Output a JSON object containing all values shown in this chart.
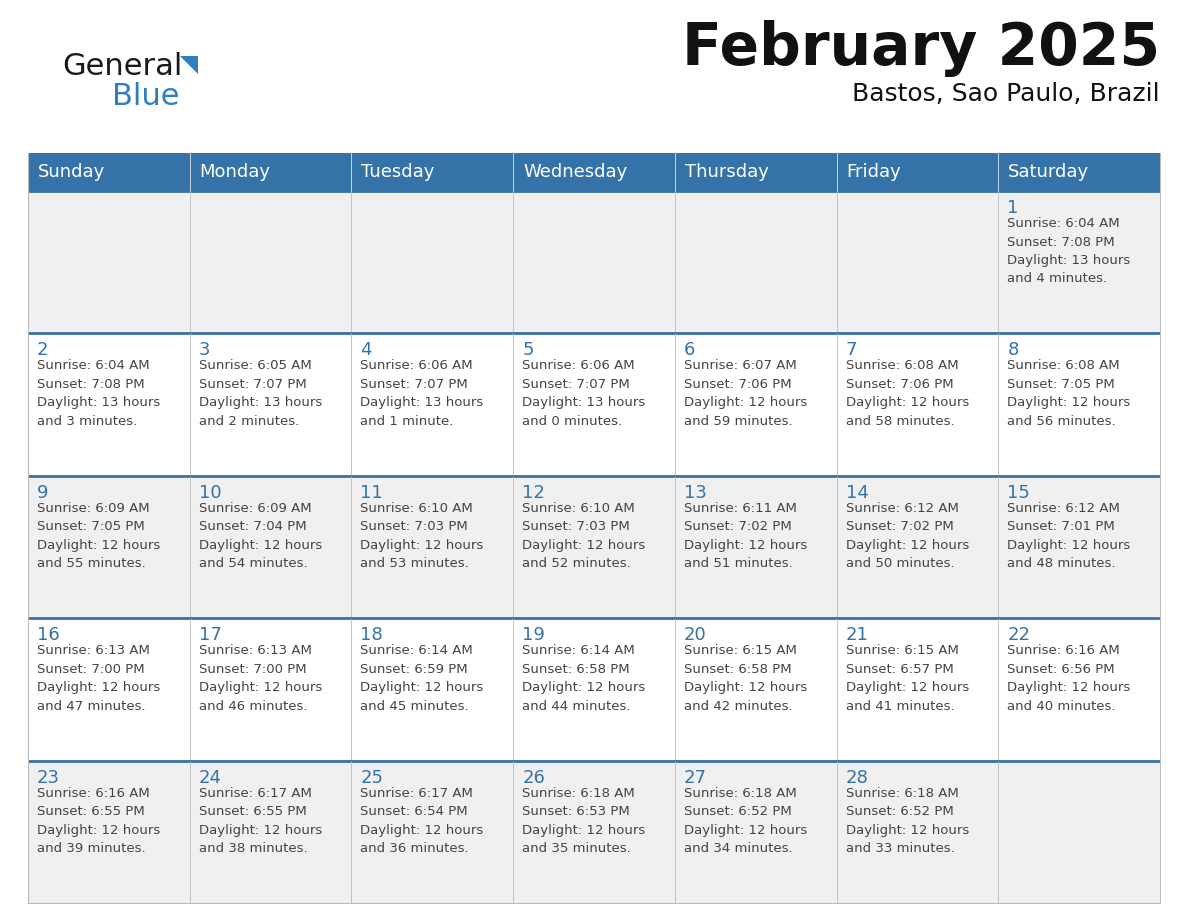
{
  "title": "February 2025",
  "subtitle": "Bastos, Sao Paulo, Brazil",
  "header_bg": "#3572A8",
  "header_text": "#FFFFFF",
  "cell_bg_odd": "#F0F0F0",
  "cell_bg_even": "#FFFFFF",
  "day_text_color": "#3572A8",
  "content_text_color": "#444444",
  "line_color": "#3572A8",
  "grid_line_color": "#BBBBBB",
  "days_of_week": [
    "Sunday",
    "Monday",
    "Tuesday",
    "Wednesday",
    "Thursday",
    "Friday",
    "Saturday"
  ],
  "weeks": [
    [
      {
        "day": null,
        "text": ""
      },
      {
        "day": null,
        "text": ""
      },
      {
        "day": null,
        "text": ""
      },
      {
        "day": null,
        "text": ""
      },
      {
        "day": null,
        "text": ""
      },
      {
        "day": null,
        "text": ""
      },
      {
        "day": 1,
        "text": "Sunrise: 6:04 AM\nSunset: 7:08 PM\nDaylight: 13 hours\nand 4 minutes."
      }
    ],
    [
      {
        "day": 2,
        "text": "Sunrise: 6:04 AM\nSunset: 7:08 PM\nDaylight: 13 hours\nand 3 minutes."
      },
      {
        "day": 3,
        "text": "Sunrise: 6:05 AM\nSunset: 7:07 PM\nDaylight: 13 hours\nand 2 minutes."
      },
      {
        "day": 4,
        "text": "Sunrise: 6:06 AM\nSunset: 7:07 PM\nDaylight: 13 hours\nand 1 minute."
      },
      {
        "day": 5,
        "text": "Sunrise: 6:06 AM\nSunset: 7:07 PM\nDaylight: 13 hours\nand 0 minutes."
      },
      {
        "day": 6,
        "text": "Sunrise: 6:07 AM\nSunset: 7:06 PM\nDaylight: 12 hours\nand 59 minutes."
      },
      {
        "day": 7,
        "text": "Sunrise: 6:08 AM\nSunset: 7:06 PM\nDaylight: 12 hours\nand 58 minutes."
      },
      {
        "day": 8,
        "text": "Sunrise: 6:08 AM\nSunset: 7:05 PM\nDaylight: 12 hours\nand 56 minutes."
      }
    ],
    [
      {
        "day": 9,
        "text": "Sunrise: 6:09 AM\nSunset: 7:05 PM\nDaylight: 12 hours\nand 55 minutes."
      },
      {
        "day": 10,
        "text": "Sunrise: 6:09 AM\nSunset: 7:04 PM\nDaylight: 12 hours\nand 54 minutes."
      },
      {
        "day": 11,
        "text": "Sunrise: 6:10 AM\nSunset: 7:03 PM\nDaylight: 12 hours\nand 53 minutes."
      },
      {
        "day": 12,
        "text": "Sunrise: 6:10 AM\nSunset: 7:03 PM\nDaylight: 12 hours\nand 52 minutes."
      },
      {
        "day": 13,
        "text": "Sunrise: 6:11 AM\nSunset: 7:02 PM\nDaylight: 12 hours\nand 51 minutes."
      },
      {
        "day": 14,
        "text": "Sunrise: 6:12 AM\nSunset: 7:02 PM\nDaylight: 12 hours\nand 50 minutes."
      },
      {
        "day": 15,
        "text": "Sunrise: 6:12 AM\nSunset: 7:01 PM\nDaylight: 12 hours\nand 48 minutes."
      }
    ],
    [
      {
        "day": 16,
        "text": "Sunrise: 6:13 AM\nSunset: 7:00 PM\nDaylight: 12 hours\nand 47 minutes."
      },
      {
        "day": 17,
        "text": "Sunrise: 6:13 AM\nSunset: 7:00 PM\nDaylight: 12 hours\nand 46 minutes."
      },
      {
        "day": 18,
        "text": "Sunrise: 6:14 AM\nSunset: 6:59 PM\nDaylight: 12 hours\nand 45 minutes."
      },
      {
        "day": 19,
        "text": "Sunrise: 6:14 AM\nSunset: 6:58 PM\nDaylight: 12 hours\nand 44 minutes."
      },
      {
        "day": 20,
        "text": "Sunrise: 6:15 AM\nSunset: 6:58 PM\nDaylight: 12 hours\nand 42 minutes."
      },
      {
        "day": 21,
        "text": "Sunrise: 6:15 AM\nSunset: 6:57 PM\nDaylight: 12 hours\nand 41 minutes."
      },
      {
        "day": 22,
        "text": "Sunrise: 6:16 AM\nSunset: 6:56 PM\nDaylight: 12 hours\nand 40 minutes."
      }
    ],
    [
      {
        "day": 23,
        "text": "Sunrise: 6:16 AM\nSunset: 6:55 PM\nDaylight: 12 hours\nand 39 minutes."
      },
      {
        "day": 24,
        "text": "Sunrise: 6:17 AM\nSunset: 6:55 PM\nDaylight: 12 hours\nand 38 minutes."
      },
      {
        "day": 25,
        "text": "Sunrise: 6:17 AM\nSunset: 6:54 PM\nDaylight: 12 hours\nand 36 minutes."
      },
      {
        "day": 26,
        "text": "Sunrise: 6:18 AM\nSunset: 6:53 PM\nDaylight: 12 hours\nand 35 minutes."
      },
      {
        "day": 27,
        "text": "Sunrise: 6:18 AM\nSunset: 6:52 PM\nDaylight: 12 hours\nand 34 minutes."
      },
      {
        "day": 28,
        "text": "Sunrise: 6:18 AM\nSunset: 6:52 PM\nDaylight: 12 hours\nand 33 minutes."
      },
      {
        "day": null,
        "text": ""
      }
    ]
  ],
  "logo_general_color": "#1a1a1a",
  "logo_blue_color": "#2E7FC1",
  "title_fontsize": 42,
  "subtitle_fontsize": 18,
  "header_fontsize": 13,
  "day_number_fontsize": 13,
  "cell_text_fontsize": 9.5,
  "figsize": [
    11.88,
    9.18
  ],
  "dpi": 100
}
